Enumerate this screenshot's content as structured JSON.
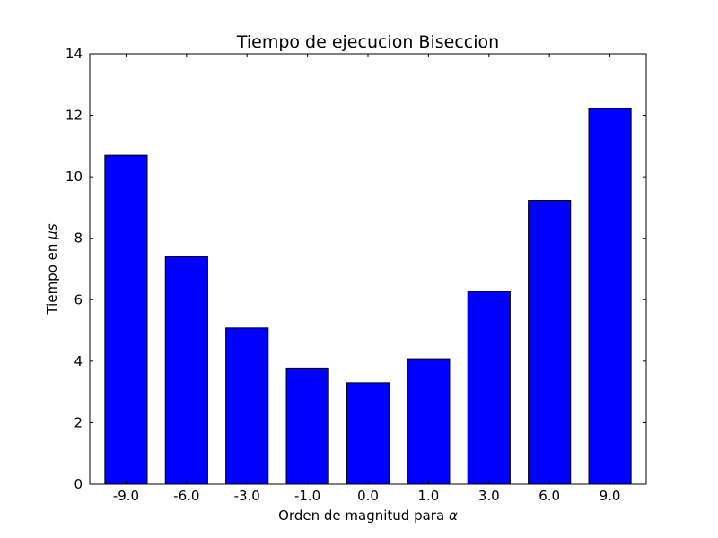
{
  "chart_data": {
    "type": "bar",
    "title": "Tiempo de ejecucion Biseccion",
    "xlabel_text": "Orden de magnitud para ",
    "xlabel_symbol": "α",
    "ylabel_text": "Tiempo en ",
    "ylabel_symbol": "μ",
    "ylabel_unit": "s",
    "categories": [
      "-9.0",
      "-6.0",
      "-3.0",
      "-1.0",
      "0.0",
      "1.0",
      "3.0",
      "6.0",
      "9.0"
    ],
    "values": [
      10.7,
      7.4,
      5.08,
      3.78,
      3.3,
      4.08,
      6.27,
      9.23,
      12.22
    ],
    "ylim": [
      0,
      14
    ],
    "yticks": [
      0,
      2,
      4,
      6,
      8,
      10,
      12,
      14
    ],
    "bar_color": "#0000ff",
    "edge_color": "#000000",
    "grid": false,
    "legend": "none"
  }
}
